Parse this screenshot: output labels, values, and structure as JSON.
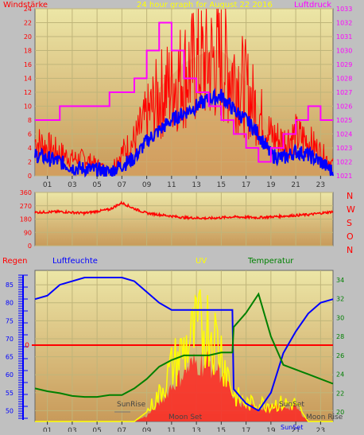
{
  "chart_data": [
    {
      "type": "line",
      "title": "24 hour graph for   August 22 2016",
      "left_axis_label": "Windstärke",
      "right_axis_label": "Luftdruck",
      "x_ticks": [
        "01",
        "03",
        "05",
        "07",
        "09",
        "11",
        "13",
        "15",
        "17",
        "19",
        "21",
        "23"
      ],
      "y_left_ticks": [
        "0",
        "2",
        "4",
        "6",
        "8",
        "10",
        "12",
        "14",
        "16",
        "18",
        "20",
        "22",
        "24"
      ],
      "y_left_range": [
        0,
        24
      ],
      "y_right_ticks": [
        "1021",
        "1022",
        "1023",
        "1024",
        "1025",
        "1026",
        "1027",
        "1028",
        "1029",
        "1030",
        "1031",
        "1032",
        "1033"
      ],
      "y_right_range": [
        1021,
        1033
      ],
      "grid": true,
      "series": [
        {
          "key": "gust",
          "color": "#ff0000",
          "x": [
            0,
            1,
            2,
            3,
            4,
            5,
            6,
            7,
            8,
            9,
            10,
            11,
            12,
            13,
            14,
            15,
            16,
            17,
            18,
            19,
            20,
            21,
            22,
            23,
            24
          ],
          "values": [
            6,
            5,
            4,
            3,
            3,
            2,
            1,
            4,
            6,
            10,
            14,
            16,
            18,
            19,
            20,
            20,
            18,
            15,
            11,
            7,
            6,
            7,
            6,
            4,
            2
          ]
        },
        {
          "key": "speed",
          "color": "#0000ff",
          "x": [
            0,
            1,
            2,
            3,
            4,
            5,
            6,
            7,
            8,
            9,
            10,
            11,
            12,
            13,
            14,
            15,
            16,
            17,
            18,
            19,
            20,
            21,
            22,
            23,
            24
          ],
          "values": [
            3,
            2.5,
            2,
            1.2,
            1,
            0.8,
            0.5,
            1.5,
            2.5,
            5,
            6.5,
            8,
            9,
            10,
            11,
            11.5,
            9.5,
            8,
            6,
            3,
            2.5,
            3.5,
            3,
            2,
            0.5
          ]
        },
        {
          "key": "pressure",
          "color": "#ff00ff",
          "x": [
            0,
            1,
            2,
            3,
            4,
            5,
            6,
            7,
            8,
            9,
            10,
            11,
            12,
            13,
            14,
            15,
            16,
            17,
            18,
            19,
            20,
            21,
            22,
            23,
            24
          ],
          "values": [
            1025,
            1025,
            1026,
            1026,
            1026,
            1026,
            1027,
            1027,
            1028,
            1030,
            1032,
            1030,
            1028,
            1027,
            1026,
            1025,
            1024,
            1023,
            1022,
            1023,
            1024,
            1025,
            1026,
            1025,
            1025
          ]
        }
      ]
    },
    {
      "type": "line",
      "y_left_ticks": [
        "360",
        "270",
        "180",
        "90",
        "0"
      ],
      "y_range": [
        0,
        360
      ],
      "compass": [
        "N",
        "W",
        "S",
        "O",
        "N"
      ],
      "grid": true,
      "series": [
        {
          "key": "direction",
          "color": "#ff0000",
          "x": [
            0,
            2,
            4,
            6,
            7,
            8,
            9,
            10,
            12,
            14,
            16,
            18,
            20,
            22,
            24
          ],
          "values": [
            225,
            230,
            220,
            245,
            290,
            250,
            220,
            210,
            190,
            185,
            195,
            190,
            200,
            210,
            230
          ]
        }
      ]
    },
    {
      "type": "line",
      "labels": {
        "rain": "Regen",
        "humidity": "Luftfeuchte",
        "uv": "UV",
        "temperature": "Temperatur"
      },
      "rain_zero": "0",
      "x_ticks": [
        "01",
        "03",
        "05",
        "07",
        "09",
        "11",
        "13",
        "15",
        "17",
        "19",
        "21",
        "23"
      ],
      "y_left_ticks": [
        "50",
        "55",
        "60",
        "65",
        "70",
        "75",
        "80",
        "85"
      ],
      "y_left_range": [
        47,
        89
      ],
      "y_right_ticks": [
        "20",
        "22",
        "24",
        "26",
        "28",
        "30",
        "32",
        "34"
      ],
      "y_right_range": [
        19,
        35
      ],
      "grid": true,
      "annotations": {
        "sunrise": "SunRise",
        "moonset": "Moon Set",
        "sunset": "SunSet",
        "moonrise": "Moon Rise",
        "sunset_short": "SunSet"
      },
      "series": [
        {
          "key": "humidity",
          "color": "#0000ff",
          "x": [
            0,
            1,
            2,
            3,
            4,
            5,
            6,
            7,
            8,
            9,
            10,
            11,
            12,
            13,
            14,
            15,
            15.9,
            16,
            17,
            18,
            19,
            20,
            21,
            22,
            23,
            24
          ],
          "values": [
            81,
            82,
            85,
            86,
            87,
            87,
            87,
            87,
            86,
            83,
            80,
            78,
            78,
            78,
            78,
            78,
            78,
            56,
            52,
            50,
            55,
            66,
            72,
            77,
            80,
            81
          ]
        },
        {
          "key": "temperature",
          "color": "#008000",
          "x": [
            0,
            1,
            2,
            3,
            4,
            5,
            6,
            7,
            8,
            9,
            10,
            11,
            12,
            13,
            14,
            15,
            15.9,
            16,
            17,
            18,
            19,
            20,
            21,
            22,
            23,
            24
          ],
          "values": [
            22.5,
            22.2,
            22,
            21.7,
            21.6,
            21.6,
            21.8,
            21.8,
            22.5,
            23.5,
            24.8,
            25.5,
            26,
            26,
            26,
            26.3,
            26.3,
            29,
            30.5,
            32.5,
            28,
            25,
            24.5,
            24,
            23.5,
            23
          ]
        },
        {
          "key": "uv",
          "color": "#ffff00",
          "x": [
            0,
            1,
            2,
            3,
            4,
            5,
            6,
            7,
            8,
            9,
            10,
            11,
            12,
            13,
            14,
            15,
            16,
            17,
            18,
            19,
            20,
            21,
            22,
            23,
            24
          ],
          "values": [
            0,
            0,
            0,
            0,
            0,
            0,
            0,
            0,
            0,
            0.5,
            1.5,
            3,
            4,
            5,
            5.4,
            4,
            1.5,
            1,
            1,
            1,
            1,
            1,
            0,
            0,
            0
          ]
        },
        {
          "key": "solar",
          "color": "#ff0000",
          "x": [
            0,
            1,
            2,
            3,
            4,
            5,
            6,
            7,
            8,
            9,
            10,
            11,
            12,
            13,
            14,
            15,
            16,
            17,
            18,
            19,
            20,
            21,
            22,
            23,
            24
          ],
          "values": [
            0,
            0,
            0,
            0,
            0,
            0,
            0,
            0,
            0,
            0.3,
            1,
            2,
            2.8,
            3.3,
            3.3,
            2.8,
            1.2,
            0.8,
            0.8,
            0.8,
            0.8,
            0.8,
            0,
            0,
            0
          ]
        }
      ]
    }
  ]
}
